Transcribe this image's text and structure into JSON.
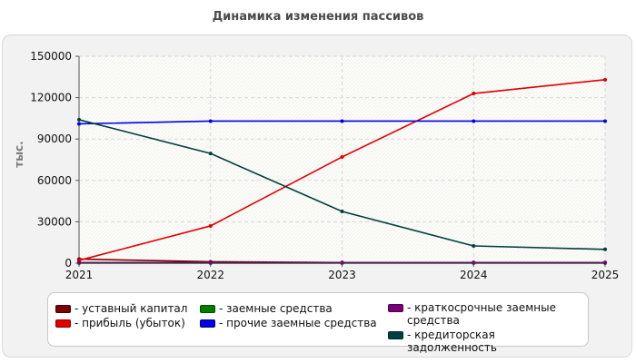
{
  "chart_data": {
    "type": "line",
    "title": "Динамика изменения пассивов",
    "ylabel": "тыс.",
    "xlabel": "",
    "x": [
      "2021",
      "2022",
      "2023",
      "2024",
      "2025"
    ],
    "ylim": [
      0,
      150000
    ],
    "yticks": [
      "0",
      "30000",
      "60000",
      "90000",
      "120000",
      "150000"
    ],
    "ytick_values": [
      0,
      30000,
      60000,
      90000,
      120000,
      150000
    ],
    "grid": true,
    "legend_placement": "bottom",
    "series": [
      {
        "name": "- уставный капитал",
        "color": "#7b0000",
        "values": [
          3000,
          1000,
          500,
          500,
          500
        ]
      },
      {
        "name": "- прибыль (убыток)",
        "color": "#e00000",
        "values": [
          2000,
          27000,
          77000,
          123000,
          133000
        ]
      },
      {
        "name": "- заемные средства",
        "color": "#007a00",
        "values": [
          0,
          0,
          0,
          0,
          0
        ]
      },
      {
        "name": "- прочие заемные средства",
        "color": "#0000e6",
        "values": [
          101000,
          103000,
          103000,
          103000,
          103000
        ]
      },
      {
        "name": "- краткосрочные заемные\nсредства",
        "color": "#7a007a",
        "values": [
          500,
          500,
          500,
          500,
          500
        ]
      },
      {
        "name": "- кредиторская задолженность",
        "color": "#003f3f",
        "values": [
          104000,
          79500,
          37500,
          12500,
          10000
        ]
      }
    ]
  }
}
